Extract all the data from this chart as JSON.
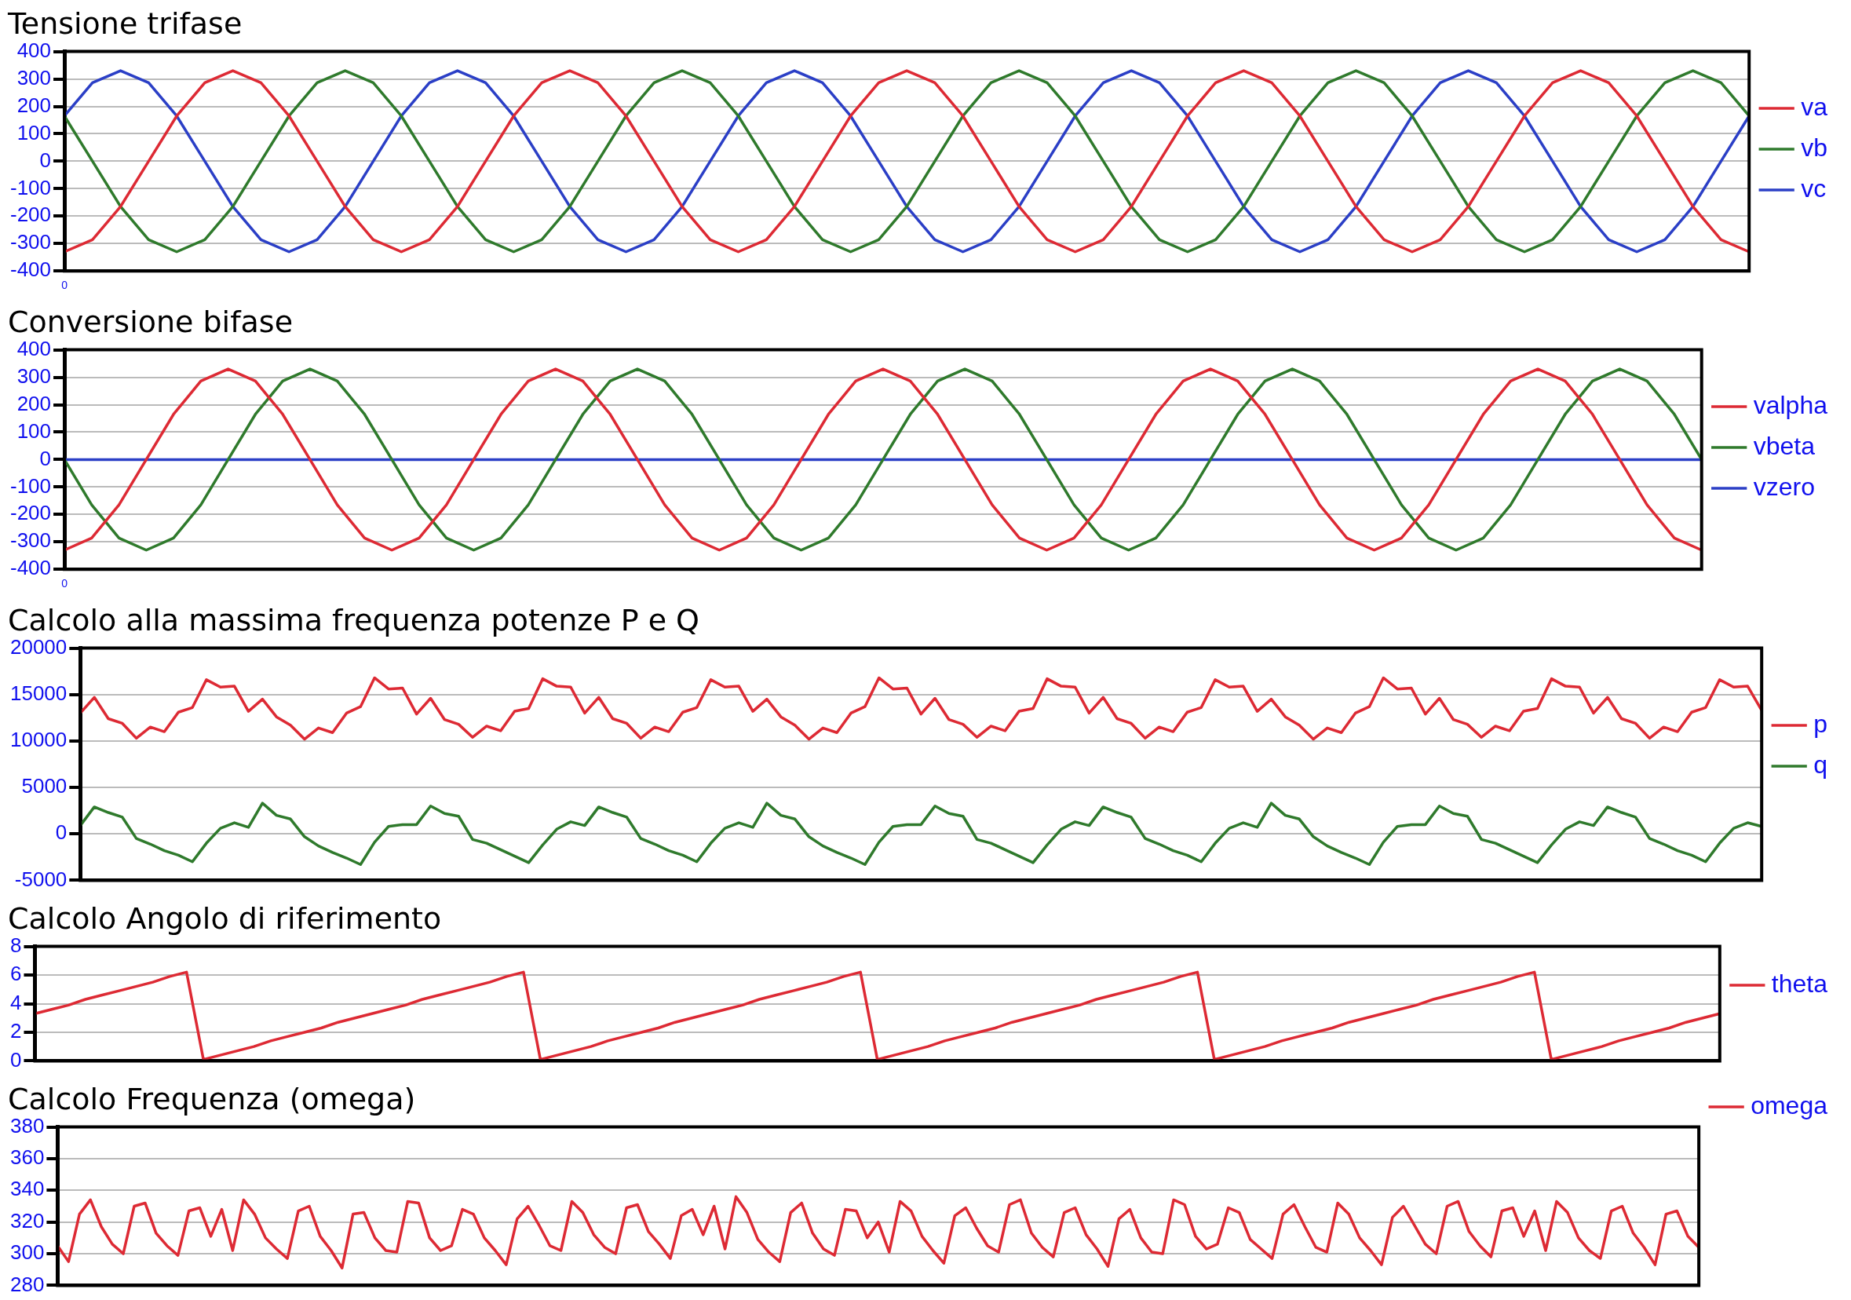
{
  "chart_data": [
    {
      "type": "line",
      "title": "Tensione trifase",
      "categories": [
        "0",
        null,
        null,
        null,
        null,
        null,
        null,
        null,
        null,
        null,
        null,
        null,
        null,
        null,
        null,
        null,
        null,
        null,
        null,
        null,
        null,
        null,
        null,
        null,
        null,
        null,
        null,
        null,
        null,
        null,
        null,
        null,
        null,
        null,
        null,
        null,
        null,
        null,
        null,
        null,
        null,
        null,
        null,
        null,
        null,
        null,
        null,
        null,
        null,
        null,
        null,
        null,
        null,
        null,
        null,
        null,
        null,
        null,
        null,
        null,
        null
      ],
      "ylim": [
        -400,
        400
      ],
      "yticks": [
        -400,
        -300,
        -200,
        -100,
        0,
        100,
        200,
        300,
        400
      ],
      "grid": "y",
      "legend": "right",
      "marker": "none",
      "series": [
        {
          "name": "va",
          "color": "#dd2a34",
          "values": [
            -330,
            -286,
            -165,
            0,
            165,
            286,
            330,
            286,
            165,
            0,
            -165,
            -286,
            -330,
            -286,
            -165,
            0,
            165,
            286,
            330,
            286,
            165,
            0,
            -165,
            -286,
            -330,
            -286,
            -165,
            0,
            165,
            286,
            330,
            286,
            165,
            0,
            -165,
            -286,
            -330,
            -286,
            -165,
            0,
            165,
            286,
            330,
            286,
            165,
            0,
            -165,
            -286,
            -330,
            -286,
            -165,
            0,
            165,
            286,
            330,
            286,
            165,
            0,
            -165,
            -286,
            -330
          ]
        },
        {
          "name": "vb",
          "color": "#2f7a2c",
          "values": [
            165,
            0,
            -165,
            -286,
            -330,
            -286,
            -165,
            0,
            165,
            286,
            330,
            286,
            165,
            0,
            -165,
            -286,
            -330,
            -286,
            -165,
            0,
            165,
            286,
            330,
            286,
            165,
            0,
            -165,
            -286,
            -330,
            -286,
            -165,
            0,
            165,
            286,
            330,
            286,
            165,
            0,
            -165,
            -286,
            -330,
            -286,
            -165,
            0,
            165,
            286,
            330,
            286,
            165,
            0,
            -165,
            -286,
            -330,
            -286,
            -165,
            0,
            165,
            286,
            330,
            286,
            165
          ]
        },
        {
          "name": "vc",
          "color": "#2b3fc6",
          "values": [
            165,
            286,
            330,
            286,
            165,
            0,
            -165,
            -286,
            -330,
            -286,
            -165,
            0,
            165,
            286,
            330,
            286,
            165,
            0,
            -165,
            -286,
            -330,
            -286,
            -165,
            0,
            165,
            286,
            330,
            286,
            165,
            0,
            -165,
            -286,
            -330,
            -286,
            -165,
            0,
            165,
            286,
            330,
            286,
            165,
            0,
            -165,
            -286,
            -330,
            -286,
            -165,
            0,
            165,
            286,
            330,
            286,
            165,
            0,
            -165,
            -286,
            -330,
            -286,
            -165,
            0,
            165
          ]
        }
      ]
    },
    {
      "type": "line",
      "title": "Conversione bifase",
      "categories": [
        "0",
        null,
        null,
        null,
        null,
        null,
        null,
        null,
        null,
        null,
        null,
        null,
        null,
        null,
        null,
        null,
        null,
        null,
        null,
        null,
        null,
        null,
        null,
        null,
        null,
        null,
        null,
        null,
        null,
        null,
        null,
        null,
        null,
        null,
        null,
        null,
        null,
        null,
        null,
        null,
        null,
        null,
        null,
        null,
        null,
        null,
        null,
        null,
        null,
        null,
        null,
        null,
        null,
        null,
        null,
        null,
        null,
        null,
        null,
        null,
        null
      ],
      "ylim": [
        -400,
        400
      ],
      "yticks": [
        -400,
        -300,
        -200,
        -100,
        0,
        100,
        200,
        300,
        400
      ],
      "grid": "y",
      "legend": "right",
      "marker": "none",
      "series": [
        {
          "name": "valpha",
          "color": "#dd2a34",
          "values": [
            -330,
            -286,
            -165,
            0,
            165,
            286,
            330,
            286,
            165,
            0,
            -165,
            -286,
            -330,
            -286,
            -165,
            0,
            165,
            286,
            330,
            286,
            165,
            0,
            -165,
            -286,
            -330,
            -286,
            -165,
            0,
            165,
            286,
            330,
            286,
            165,
            0,
            -165,
            -286,
            -330,
            -286,
            -165,
            0,
            165,
            286,
            330,
            286,
            165,
            0,
            -165,
            -286,
            -330,
            -286,
            -165,
            0,
            165,
            286,
            330,
            286,
            165,
            0,
            -165,
            -286,
            -330
          ]
        },
        {
          "name": "vbeta",
          "color": "#2f7a2c",
          "values": [
            0,
            -165,
            -286,
            -330,
            -286,
            -165,
            0,
            165,
            286,
            330,
            286,
            165,
            0,
            -165,
            -286,
            -330,
            -286,
            -165,
            0,
            165,
            286,
            330,
            286,
            165,
            0,
            -165,
            -286,
            -330,
            -286,
            -165,
            0,
            165,
            286,
            330,
            286,
            165,
            0,
            -165,
            -286,
            -330,
            -286,
            -165,
            0,
            165,
            286,
            330,
            286,
            165,
            0,
            -165,
            -286,
            -330,
            -286,
            -165,
            0,
            165,
            286,
            330,
            286,
            165,
            0
          ]
        },
        {
          "name": "vzero",
          "color": "#2b3fc6",
          "values": [
            0,
            0,
            0,
            0,
            0,
            0,
            0,
            0,
            0,
            0,
            0,
            0,
            0,
            0,
            0,
            0,
            0,
            0,
            0,
            0,
            0,
            0,
            0,
            0,
            0,
            0,
            0,
            0,
            0,
            0,
            0,
            0,
            0,
            0,
            0,
            0,
            0,
            0,
            0,
            0,
            0,
            0,
            0,
            0,
            0,
            0,
            0,
            0,
            0,
            0,
            0,
            0,
            0,
            0,
            0,
            0,
            0,
            0,
            0,
            0,
            0
          ]
        }
      ]
    },
    {
      "type": "line",
      "title": "Calcolo alla massima frequenza potenze P e Q",
      "categories": [
        null,
        null,
        null,
        null,
        null,
        null,
        null,
        null,
        null,
        null,
        null,
        null,
        null,
        null,
        null,
        null,
        null,
        null,
        null,
        null,
        null,
        null,
        null,
        null,
        null,
        null,
        null,
        null,
        null,
        null,
        null,
        null,
        null,
        null,
        null,
        null,
        null,
        null,
        null,
        null,
        null,
        null,
        null,
        null,
        null,
        null,
        null,
        null,
        null,
        null,
        null,
        null,
        null,
        null,
        null,
        null,
        null,
        null,
        null,
        null,
        null,
        null,
        null,
        null,
        null,
        null,
        null,
        null,
        null,
        null,
        null,
        null,
        null,
        null,
        null,
        null,
        null,
        null,
        null,
        null,
        null,
        null,
        null,
        null,
        null,
        null,
        null,
        null,
        null,
        null,
        null,
        null,
        null,
        null,
        null,
        null,
        null,
        null,
        null,
        null,
        null,
        null,
        null,
        null,
        null,
        null,
        null,
        null,
        null,
        null,
        null,
        null,
        null,
        null,
        null,
        null,
        null,
        null,
        null,
        null,
        null
      ],
      "ylim": [
        -5000,
        20000
      ],
      "yticks": [
        -5000,
        0,
        5000,
        10000,
        15000,
        20000
      ],
      "grid": "y",
      "legend": "right",
      "marker": "none",
      "tick_labels": "y",
      "series": [
        {
          "name": "p",
          "color": "#dd2a34",
          "values": [
            13000,
            14700,
            12400,
            11900,
            10300,
            11500,
            11000,
            13100,
            13600,
            16600,
            15800,
            15900,
            13200,
            14500,
            12600,
            11700,
            10200,
            11400,
            10900,
            13000,
            13700,
            16800,
            15600,
            15700,
            12900,
            14600,
            12300,
            11800,
            10400,
            11600,
            11100,
            13200,
            13500,
            16700,
            15900,
            15800,
            13000,
            14700,
            12400,
            11900,
            10300,
            11500,
            11000,
            13100,
            13600,
            16600,
            15800,
            15900,
            13200,
            14500,
            12600,
            11700,
            10200,
            11400,
            10900,
            13000,
            13700,
            16800,
            15600,
            15700,
            12900,
            14600,
            12300,
            11800,
            10400,
            11600,
            11100,
            13200,
            13500,
            16700,
            15900,
            15800,
            13000,
            14700,
            12400,
            11900,
            10300,
            11500,
            11000,
            13100,
            13600,
            16600,
            15800,
            15900,
            13200,
            14500,
            12600,
            11700,
            10200,
            11400,
            10900,
            13000,
            13700,
            16800,
            15600,
            15700,
            12900,
            14600,
            12300,
            11800,
            10400,
            11600,
            11100,
            13200,
            13500,
            16700,
            15900,
            15800,
            13000,
            14700,
            12400,
            11900,
            10300,
            11500,
            11000,
            13100,
            13600,
            16600,
            15800,
            15900,
            13300
          ]
        },
        {
          "name": "q",
          "color": "#2f7a2c",
          "values": [
            900,
            2900,
            2300,
            1800,
            -500,
            -1100,
            -1800,
            -2300,
            -3000,
            -1000,
            600,
            1200,
            700,
            3300,
            2000,
            1600,
            -300,
            -1300,
            -2000,
            -2600,
            -3300,
            -900,
            800,
            1000,
            1000,
            3000,
            2200,
            1900,
            -600,
            -1000,
            -1700,
            -2400,
            -3100,
            -1200,
            500,
            1300,
            900,
            2900,
            2300,
            1800,
            -500,
            -1100,
            -1800,
            -2300,
            -3000,
            -1000,
            600,
            1200,
            700,
            3300,
            2000,
            1600,
            -300,
            -1300,
            -2000,
            -2600,
            -3300,
            -900,
            800,
            1000,
            1000,
            3000,
            2200,
            1900,
            -600,
            -1000,
            -1700,
            -2400,
            -3100,
            -1200,
            500,
            1300,
            900,
            2900,
            2300,
            1800,
            -500,
            -1100,
            -1800,
            -2300,
            -3000,
            -1000,
            600,
            1200,
            700,
            3300,
            2000,
            1600,
            -300,
            -1300,
            -2000,
            -2600,
            -3300,
            -900,
            800,
            1000,
            1000,
            3000,
            2200,
            1900,
            -600,
            -1000,
            -1700,
            -2400,
            -3100,
            -1200,
            500,
            1300,
            900,
            2900,
            2300,
            1800,
            -500,
            -1100,
            -1800,
            -2300,
            -3000,
            -1000,
            600,
            1200,
            800
          ]
        }
      ]
    },
    {
      "type": "line",
      "title": "Calcolo Angolo di riferimento",
      "categories": [
        null,
        null,
        null,
        null,
        null,
        null,
        null,
        null,
        null,
        null,
        null,
        null,
        null,
        null,
        null,
        null,
        null,
        null,
        null,
        null,
        null,
        null,
        null,
        null,
        null,
        null,
        null,
        null,
        null,
        null,
        null,
        null,
        null,
        null,
        null,
        null,
        null,
        null,
        null,
        null,
        null,
        null,
        null,
        null,
        null,
        null,
        null,
        null,
        null,
        null,
        null,
        null,
        null,
        null,
        null,
        null,
        null,
        null,
        null,
        null,
        null,
        null,
        null,
        null,
        null,
        null,
        null,
        null,
        null,
        null,
        null,
        null,
        null,
        null,
        null,
        null,
        null,
        null,
        null,
        null,
        null,
        null,
        null,
        null,
        null,
        null,
        null,
        null,
        null,
        null,
        null,
        null,
        null,
        null,
        null,
        null,
        null,
        null,
        null,
        null,
        null
      ],
      "ylim": [
        0,
        8
      ],
      "yticks": [
        0,
        2,
        4,
        6,
        8
      ],
      "grid": "y",
      "legend": "right",
      "marker": "none",
      "tick_labels": "y",
      "series": [
        {
          "name": "theta",
          "color": "#dd2a34",
          "values": [
            3.3,
            3.6,
            3.9,
            4.3,
            4.6,
            4.9,
            5.2,
            5.5,
            5.9,
            6.2,
            0.1,
            0.4,
            0.7,
            1.0,
            1.4,
            1.7,
            2.0,
            2.3,
            2.7,
            3.0,
            3.3,
            3.6,
            3.9,
            4.3,
            4.6,
            4.9,
            5.2,
            5.5,
            5.9,
            6.2,
            0.1,
            0.4,
            0.7,
            1.0,
            1.4,
            1.7,
            2.0,
            2.3,
            2.7,
            3.0,
            3.3,
            3.6,
            3.9,
            4.3,
            4.6,
            4.9,
            5.2,
            5.5,
            5.9,
            6.2,
            0.1,
            0.4,
            0.7,
            1.0,
            1.4,
            1.7,
            2.0,
            2.3,
            2.7,
            3.0,
            3.3,
            3.6,
            3.9,
            4.3,
            4.6,
            4.9,
            5.2,
            5.5,
            5.9,
            6.2,
            0.1,
            0.4,
            0.7,
            1.0,
            1.4,
            1.7,
            2.0,
            2.3,
            2.7,
            3.0,
            3.3,
            3.6,
            3.9,
            4.3,
            4.6,
            4.9,
            5.2,
            5.5,
            5.9,
            6.2,
            0.1,
            0.4,
            0.7,
            1.0,
            1.4,
            1.7,
            2.0,
            2.3,
            2.7,
            3.0,
            3.3
          ]
        }
      ]
    },
    {
      "type": "line",
      "title": "Calcolo Frequenza (omega)",
      "categories": [
        null,
        null,
        null,
        null,
        null,
        null,
        null,
        null,
        null,
        null,
        null,
        null,
        null,
        null,
        null,
        null,
        null,
        null,
        null,
        null,
        null,
        null,
        null,
        null,
        null,
        null,
        null,
        null,
        null,
        null,
        null,
        null,
        null,
        null,
        null,
        null,
        null,
        null,
        null,
        null,
        null,
        null,
        null,
        null,
        null,
        null,
        null,
        null,
        null,
        null,
        null,
        null,
        null,
        null,
        null,
        null,
        null,
        null,
        null,
        null,
        null,
        null,
        null,
        null,
        null,
        null,
        null,
        null,
        null,
        null,
        null,
        null,
        null,
        null,
        null,
        null,
        null,
        null,
        null,
        null,
        null,
        null,
        null,
        null,
        null,
        null,
        null,
        null,
        null,
        null,
        null,
        null,
        null,
        null,
        null,
        null,
        null,
        null,
        null,
        null,
        null,
        null,
        null,
        null,
        null,
        null,
        null,
        null,
        null,
        null,
        null,
        null,
        null,
        null,
        null,
        null,
        null,
        null,
        null,
        null,
        null,
        null,
        null,
        null,
        null,
        null,
        null,
        null,
        null,
        null,
        null,
        null,
        null,
        null,
        null,
        null,
        null,
        null,
        null,
        null,
        null,
        null,
        null,
        null,
        null,
        null,
        null,
        null,
        null,
        null,
        null
      ],
      "ylim": [
        280,
        380
      ],
      "yticks": [
        280,
        300,
        320,
        340,
        360,
        380
      ],
      "grid": "y",
      "legend": "top right",
      "marker": "none",
      "tick_labels": "y",
      "series": [
        {
          "name": "omega",
          "color": "#dd2a34",
          "values": [
            305,
            295,
            325,
            334,
            317,
            306,
            300,
            330,
            332,
            313,
            305,
            299,
            327,
            329,
            311,
            328,
            302,
            334,
            325,
            310,
            303,
            297,
            327,
            330,
            311,
            302,
            291,
            325,
            326,
            310,
            302,
            301,
            333,
            332,
            310,
            302,
            305,
            328,
            325,
            310,
            302,
            293,
            322,
            330,
            318,
            305,
            302,
            333,
            326,
            312,
            304,
            300,
            329,
            331,
            314,
            306,
            297,
            324,
            328,
            312,
            330,
            303,
            336,
            326,
            309,
            301,
            295,
            326,
            332,
            313,
            303,
            299,
            328,
            327,
            310,
            320,
            301,
            333,
            327,
            311,
            302,
            294,
            324,
            329,
            316,
            305,
            301,
            331,
            334,
            313,
            304,
            298,
            326,
            329,
            312,
            303,
            292,
            322,
            328,
            310,
            301,
            300,
            334,
            331,
            311,
            303,
            306,
            329,
            326,
            309,
            303,
            297,
            325,
            331,
            317,
            304,
            301,
            332,
            325,
            310,
            302,
            293,
            323,
            330,
            318,
            306,
            300,
            330,
            333,
            314,
            305,
            298,
            327,
            329,
            311,
            327,
            302,
            333,
            326,
            310,
            302,
            297,
            327,
            330,
            313,
            304,
            293,
            325,
            327,
            311,
            304
          ]
        }
      ]
    }
  ]
}
